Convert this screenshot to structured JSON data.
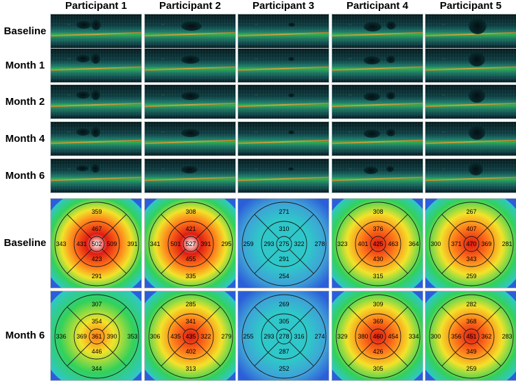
{
  "column_headers": [
    "Participant 1",
    "Participant 2",
    "Participant 3",
    "Participant 4",
    "Participant 5"
  ],
  "oct_row_labels": [
    "Baseline",
    "Month 1",
    "Month 2",
    "Month 4",
    "Month 6"
  ],
  "map_row_labels": [
    "Baseline",
    "Month 6"
  ],
  "thickness_maps": {
    "baseline": [
      {
        "center": "502",
        "inner": {
          "top": "467",
          "right": "509",
          "bottom": "423",
          "left": "431"
        },
        "outer": {
          "top": "359",
          "right": "391",
          "bottom": "291",
          "left": "343"
        }
      },
      {
        "center": "527",
        "inner": {
          "top": "421",
          "right": "391",
          "bottom": "455",
          "left": "501"
        },
        "outer": {
          "top": "308",
          "right": "295",
          "bottom": "335",
          "left": "341"
        }
      },
      {
        "center": "275",
        "inner": {
          "top": "310",
          "right": "322",
          "bottom": "291",
          "left": "293"
        },
        "outer": {
          "top": "271",
          "right": "278",
          "bottom": "254",
          "left": "259"
        }
      },
      {
        "center": "425",
        "inner": {
          "top": "376",
          "right": "463",
          "bottom": "430",
          "left": "401"
        },
        "outer": {
          "top": "308",
          "right": "364",
          "bottom": "315",
          "left": "323"
        }
      },
      {
        "center": "470",
        "inner": {
          "top": "407",
          "right": "369",
          "bottom": "343",
          "left": "371"
        },
        "outer": {
          "top": "267",
          "right": "281",
          "bottom": "259",
          "left": "300"
        }
      }
    ],
    "month6": [
      {
        "center": "361",
        "inner": {
          "top": "354",
          "right": "390",
          "bottom": "446",
          "left": "369"
        },
        "outer": {
          "top": "307",
          "right": "353",
          "bottom": "344",
          "left": "336"
        }
      },
      {
        "center": "435",
        "inner": {
          "top": "341",
          "right": "322",
          "bottom": "402",
          "left": "435"
        },
        "outer": {
          "top": "285",
          "right": "279",
          "bottom": "313",
          "left": "306"
        }
      },
      {
        "center": "278",
        "inner": {
          "top": "305",
          "right": "316",
          "bottom": "287",
          "left": "293"
        },
        "outer": {
          "top": "269",
          "right": "274",
          "bottom": "252",
          "left": "255"
        }
      },
      {
        "center": "460",
        "inner": {
          "top": "369",
          "right": "454",
          "bottom": "426",
          "left": "380"
        },
        "outer": {
          "top": "309",
          "right": "334",
          "bottom": "305",
          "left": "329"
        }
      },
      {
        "center": "451",
        "inner": {
          "top": "368",
          "right": "362",
          "bottom": "349",
          "left": "356"
        },
        "outer": {
          "top": "282",
          "right": "283",
          "bottom": "259",
          "left": "300"
        }
      }
    ]
  },
  "colors": {
    "thin": "#2b5fd9",
    "low": "#2fc7c9",
    "mid": "#33d15a",
    "raised": "#f2e32a",
    "high": "#ff7a1a",
    "very_high": "#e01b12",
    "extreme": "#ffffff"
  }
}
